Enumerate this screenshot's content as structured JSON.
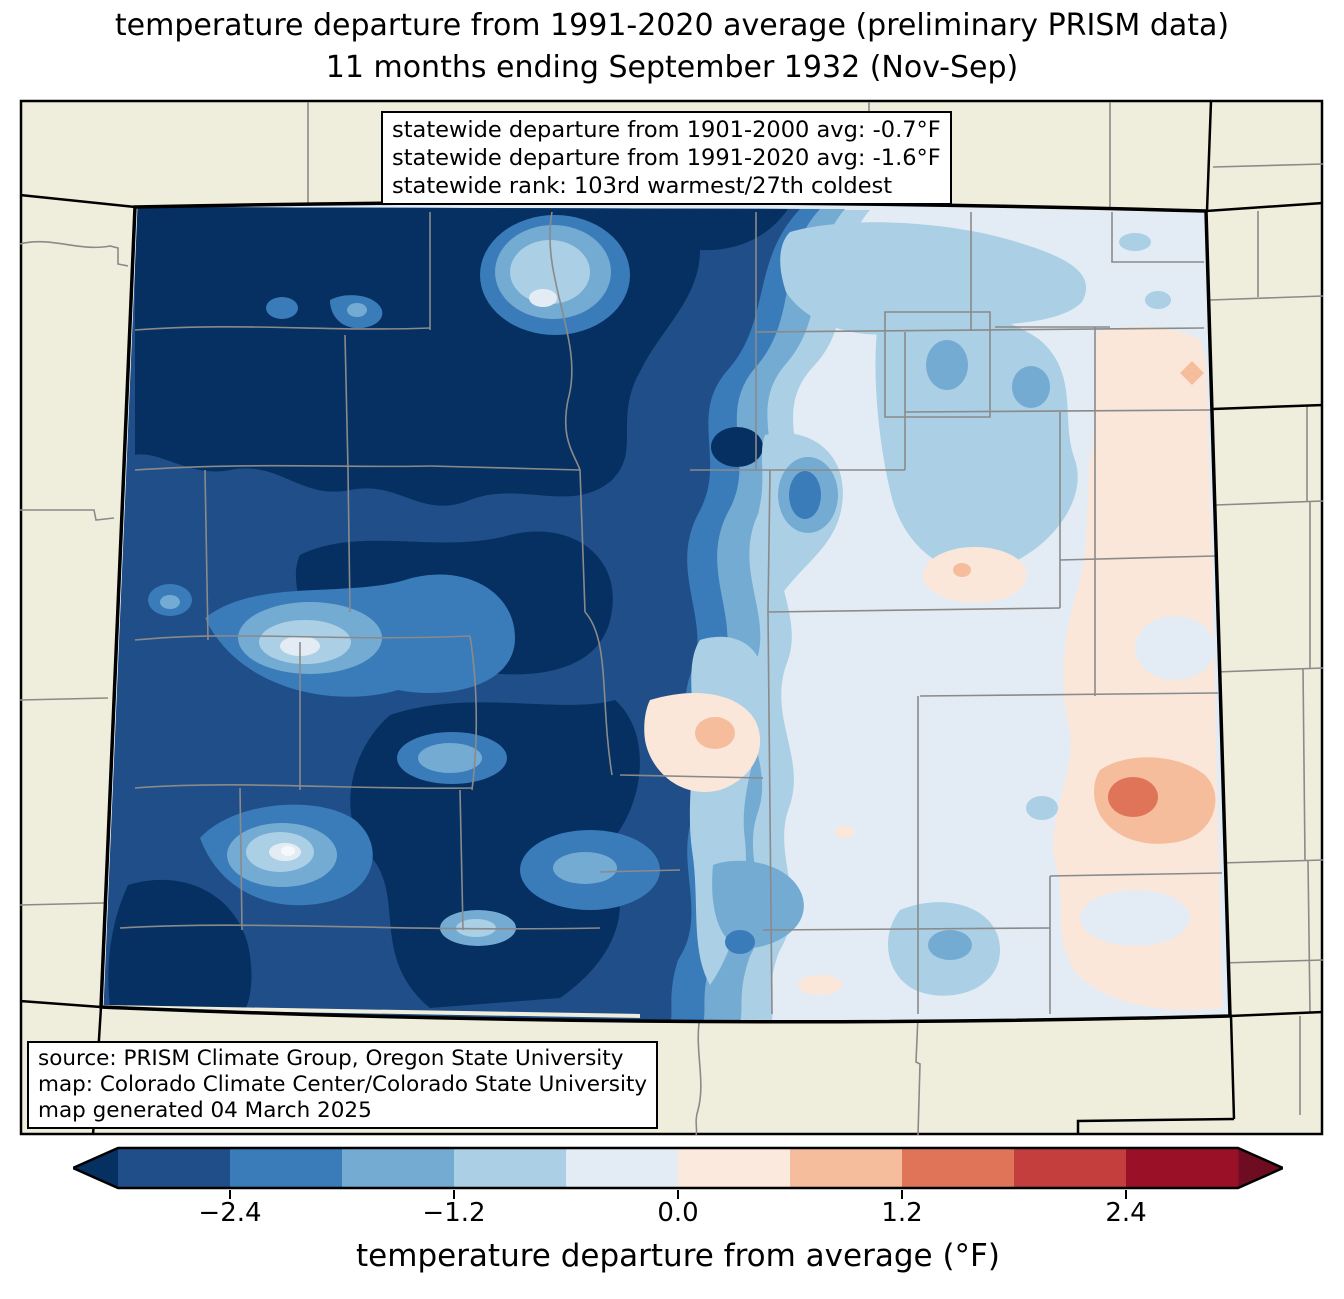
{
  "title": {
    "line1": "temperature departure from 1991-2020 average (preliminary PRISM data)",
    "line2": "11 months ending September 1932 (Nov-Sep)"
  },
  "stats_box": {
    "lines": [
      "statewide departure from 1901-2000 avg: -0.7°F",
      "statewide departure from 1991-2020 avg: -1.6°F",
      "statewide rank: 103rd warmest/27th coldest"
    ]
  },
  "source_box": {
    "lines": [
      "source: PRISM Climate Group, Oregon State University",
      "map: Colorado Climate Center/Colorado State University",
      "map generated 04 March 2025"
    ]
  },
  "colorbar": {
    "label": "temperature departure from average (°F)",
    "ticks": [
      "−2.4",
      "−1.2",
      "0.0",
      "1.2",
      "2.4"
    ],
    "tick_values": [
      -2.4,
      -1.2,
      0.0,
      1.2,
      2.4
    ],
    "levels": [
      -3.0,
      -2.4,
      -1.8,
      -1.2,
      -0.6,
      0.0,
      0.6,
      1.2,
      1.8,
      2.4,
      3.0
    ],
    "segment_colors": [
      "#1f4e88",
      "#3a7bb9",
      "#74abd3",
      "#abcfe5",
      "#e3ecf4",
      "#fbe9de",
      "#f5bd9c",
      "#df7458",
      "#c33e3d",
      "#9a1127"
    ],
    "under_color": "#053061",
    "over_color": "#6e0d21"
  },
  "map": {
    "region": "Colorado",
    "quantity": "temperature departure from 1991-2020 average (°F)",
    "period": "11 months ending September 1932 (Nov-Sep)",
    "background_color": "#efeedc",
    "county_line_color": "#8a8a8a",
    "state_border_color": "#000000",
    "pattern_summary_colors": {
      "coldest_west": "#053061",
      "cold": "#1f4e88",
      "near_normal": "#e3ecf4",
      "warm_east": "#fae7da",
      "warmest_spot": "#df7458"
    }
  }
}
